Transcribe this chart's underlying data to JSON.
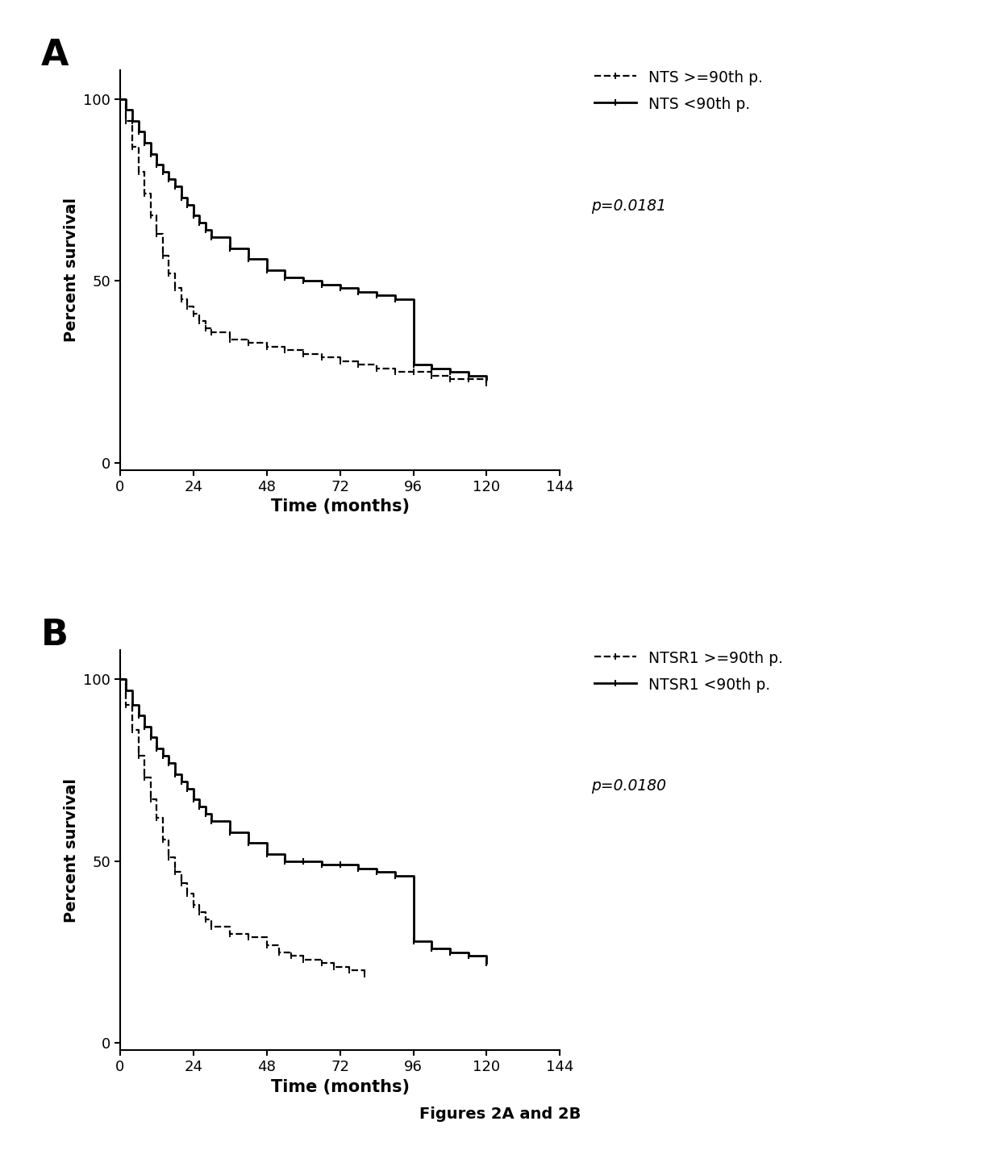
{
  "fig_title": "Figures 2A and 2B",
  "background_color": "#ffffff",
  "panel_A": {
    "label": "A",
    "ylabel": "Percent survival",
    "xlabel": "Time (months)",
    "xlim": [
      0,
      144
    ],
    "ylim": [
      -2,
      108
    ],
    "xticks": [
      0,
      24,
      48,
      72,
      96,
      120,
      144
    ],
    "yticks": [
      0,
      50,
      100
    ],
    "p_value": "p=0.0181",
    "legend_labels": [
      "NTS >=90th p.",
      "NTS <90th p."
    ],
    "curve_high_x": [
      0,
      3,
      5,
      7,
      9,
      12,
      15,
      18,
      21,
      24,
      27,
      30,
      36,
      42,
      48,
      54,
      60,
      66,
      72,
      80,
      90,
      96,
      100,
      108,
      120
    ],
    "curve_high_y": [
      100,
      88,
      80,
      72,
      67,
      60,
      55,
      50,
      45,
      42,
      38,
      36,
      34,
      33,
      32,
      31,
      30,
      29,
      28,
      27,
      26,
      25,
      24,
      23,
      22
    ],
    "curve_low_x": [
      0,
      3,
      6,
      9,
      12,
      15,
      18,
      21,
      24,
      27,
      30,
      36,
      42,
      48,
      54,
      60,
      66,
      72,
      78,
      84,
      90,
      96,
      102,
      108,
      114,
      120
    ],
    "curve_low_y": [
      100,
      95,
      90,
      85,
      81,
      78,
      74,
      70,
      66,
      63,
      60,
      57,
      54,
      51,
      49,
      47,
      46,
      48,
      47,
      46,
      45,
      27,
      26,
      25,
      24,
      23
    ]
  },
  "panel_B": {
    "label": "B",
    "ylabel": "Percent survival",
    "xlabel": "Time (months)",
    "xlim": [
      0,
      144
    ],
    "ylim": [
      -2,
      108
    ],
    "xticks": [
      0,
      24,
      48,
      72,
      96,
      120,
      144
    ],
    "yticks": [
      0,
      50,
      100
    ],
    "p_value": "p=0.0180",
    "legend_labels": [
      "NTSR1 >=90th p.",
      "NTSR1 <90th p."
    ],
    "curve_high_x": [
      0,
      3,
      5,
      7,
      9,
      12,
      15,
      18,
      21,
      24,
      27,
      30,
      36,
      42,
      48,
      52,
      56,
      60,
      66,
      70,
      72,
      80,
      90,
      96,
      100,
      108
    ],
    "curve_high_y": [
      100,
      88,
      79,
      71,
      65,
      58,
      52,
      47,
      43,
      39,
      36,
      34,
      32,
      31,
      30,
      28,
      27,
      26,
      25,
      24,
      23,
      22,
      21,
      20,
      19,
      18
    ],
    "curve_low_x": [
      0,
      3,
      6,
      9,
      12,
      15,
      18,
      21,
      24,
      27,
      30,
      36,
      42,
      48,
      54,
      60,
      66,
      72,
      78,
      84,
      90,
      96,
      102,
      108,
      114,
      120
    ],
    "curve_low_y": [
      100,
      95,
      89,
      84,
      80,
      76,
      72,
      68,
      64,
      61,
      58,
      55,
      52,
      50,
      48,
      46,
      50,
      49,
      48,
      47,
      46,
      29,
      27,
      26,
      25,
      23
    ]
  }
}
